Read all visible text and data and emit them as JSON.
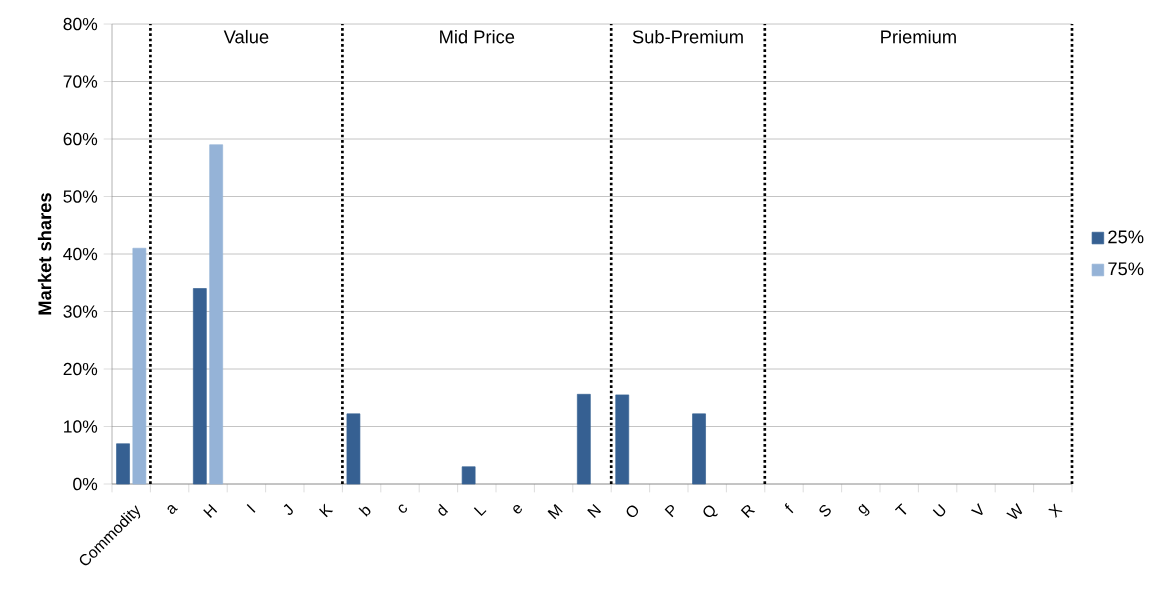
{
  "chart_data": {
    "type": "bar",
    "ylabel": "Market shares",
    "categories": [
      "Commodity",
      "a",
      "H",
      "I",
      "J",
      "K",
      "b",
      "c",
      "d",
      "L",
      "e",
      "M",
      "N",
      "O",
      "P",
      "Q",
      "R",
      "f",
      "S",
      "g",
      "T",
      "U",
      "V",
      "W",
      "X"
    ],
    "series": [
      {
        "name": "25%",
        "color": "#366092",
        "values": [
          7,
          null,
          34,
          null,
          null,
          null,
          12.2,
          null,
          null,
          3,
          null,
          null,
          15.6,
          15.5,
          null,
          12.2,
          null,
          null,
          null,
          null,
          null,
          null,
          null,
          null,
          null
        ]
      },
      {
        "name": "75%",
        "color": "#95b3d7",
        "values": [
          41,
          null,
          59,
          null,
          null,
          null,
          null,
          null,
          null,
          null,
          null,
          null,
          null,
          null,
          null,
          null,
          null,
          null,
          null,
          null,
          null,
          null,
          null,
          null,
          null
        ]
      }
    ],
    "ylim": [
      0,
      80
    ],
    "yticks": [
      {
        "value": 0,
        "label": "0%"
      },
      {
        "value": 10,
        "label": "10%"
      },
      {
        "value": 20,
        "label": "20%"
      },
      {
        "value": 30,
        "label": "30%"
      },
      {
        "value": 40,
        "label": "40%"
      },
      {
        "value": 50,
        "label": "50%"
      },
      {
        "value": 60,
        "label": "60%"
      },
      {
        "value": 70,
        "label": "70%"
      },
      {
        "value": 80,
        "label": "80%"
      }
    ],
    "grid": "y",
    "legend": "right",
    "annotations": [
      "Value",
      "Mid Price",
      "Sub-Premium",
      "Priemium"
    ]
  }
}
